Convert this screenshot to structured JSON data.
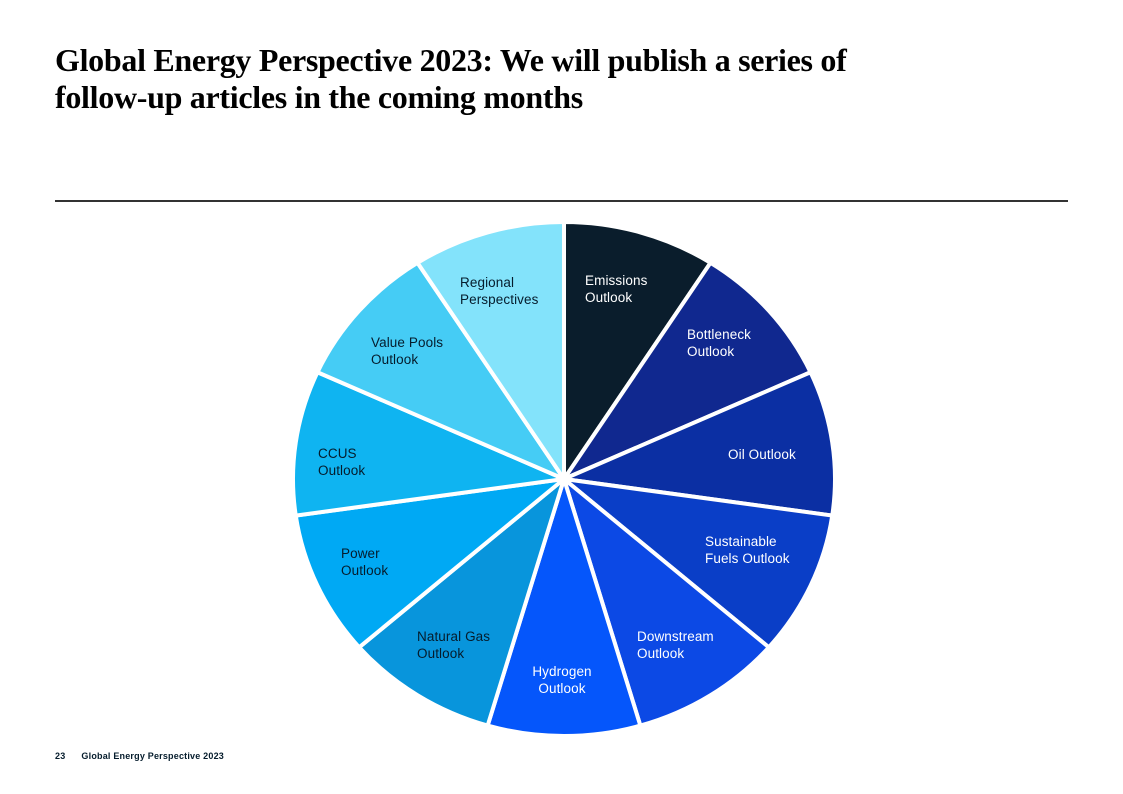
{
  "slide": {
    "title": "Global Energy Perspective 2023: We will publish a series of\nfollow-up articles in the coming months",
    "footer": {
      "page_number": "23",
      "label": "Global Energy Perspective 2023"
    }
  },
  "colors": {
    "background": "#ffffff",
    "title_text": "#000000",
    "divider": "#333333",
    "dark_label_text": "#051c2c",
    "slice_gap": "#ffffff"
  },
  "chart_data": {
    "type": "pie",
    "direction": "clockwise",
    "start_angle_deg": 0,
    "legend": "none (labels placed inside slices)",
    "slices": [
      {
        "label": "Emissions\nOutlook",
        "value": 1,
        "color": "#0a1d2c",
        "label_color": "#ffffff"
      },
      {
        "label": "Bottleneck\nOutlook",
        "value": 1,
        "color": "#10288f",
        "label_color": "#ffffff"
      },
      {
        "label": "Oil Outlook",
        "value": 1,
        "color": "#0b2fa3",
        "label_color": "#ffffff"
      },
      {
        "label": "Sustainable\nFuels Outlook",
        "value": 1,
        "color": "#0a3ec7",
        "label_color": "#ffffff"
      },
      {
        "label": "Downstream\nOutlook",
        "value": 1,
        "color": "#0c49e5",
        "label_color": "#ffffff"
      },
      {
        "label": "Hydrogen\nOutlook",
        "value": 1,
        "color": "#0556fb",
        "label_color": "#ffffff"
      },
      {
        "label": "Natural Gas\nOutlook",
        "value": 1,
        "color": "#0895dc",
        "label_color": "#051c2c"
      },
      {
        "label": "Power\nOutlook",
        "value": 1,
        "color": "#00a9f4",
        "label_color": "#051c2c"
      },
      {
        "label": "CCUS\nOutlook",
        "value": 1,
        "color": "#0fb4f1",
        "label_color": "#051c2c"
      },
      {
        "label": "Value Pools\nOutlook",
        "value": 1,
        "color": "#45ccf5",
        "label_color": "#051c2c"
      },
      {
        "label": "Regional\nPerspectives",
        "value": 1,
        "color": "#83e3fb",
        "label_color": "#051c2c"
      }
    ]
  }
}
